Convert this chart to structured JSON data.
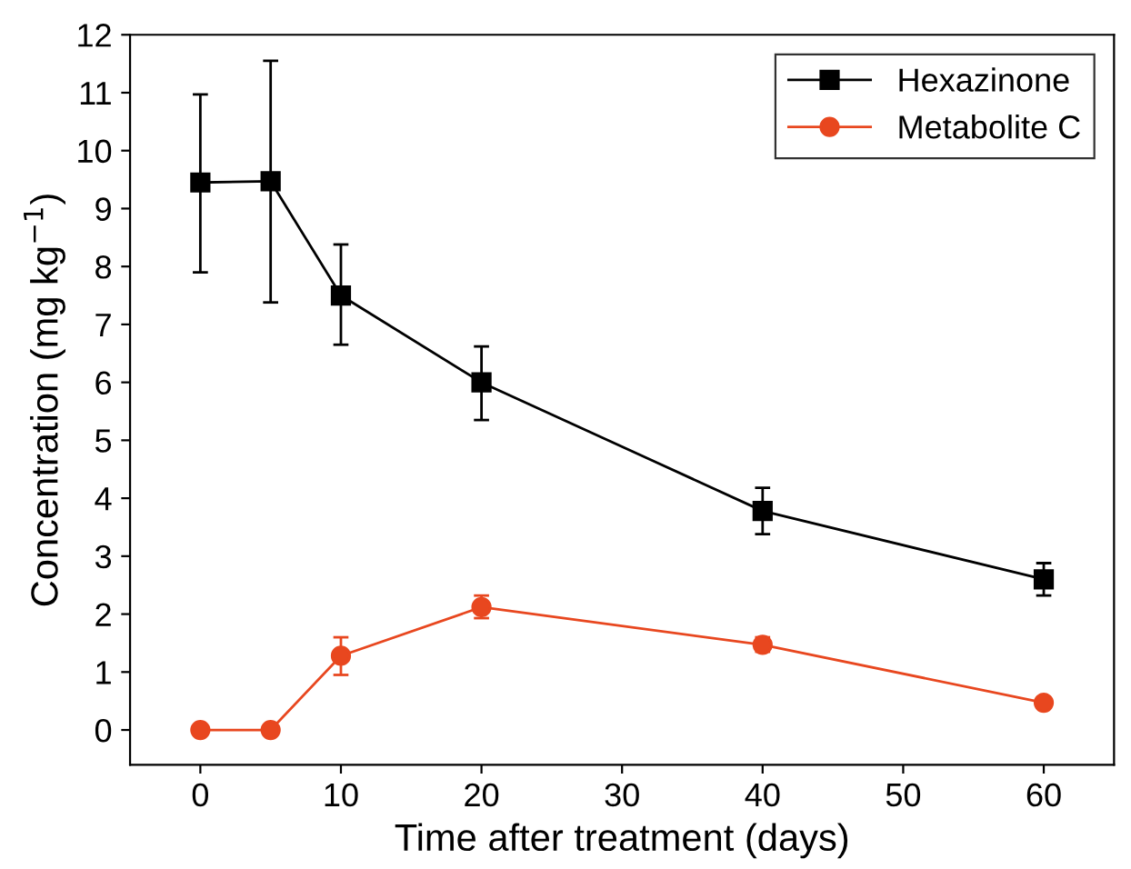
{
  "chart_data": {
    "type": "line",
    "xlabel": "Time after treatment (days)",
    "ylabel": "Concentration (mg kg$^{−1}$)",
    "x": [
      0,
      5,
      10,
      20,
      40,
      60
    ],
    "series": [
      {
        "name": "Hexazinone",
        "color": "#000000",
        "marker": "square",
        "values": [
          9.45,
          9.47,
          7.5,
          6.0,
          3.78,
          2.6
        ],
        "errors": [
          [
            7.9,
            10.97
          ],
          [
            7.38,
            11.55
          ],
          [
            6.65,
            8.38
          ],
          [
            5.35,
            6.62
          ],
          [
            3.38,
            4.18
          ],
          [
            2.32,
            2.88
          ]
        ]
      },
      {
        "name": "Metabolite C",
        "color": "#e8471f",
        "marker": "circle",
        "values": [
          0,
          0,
          1.28,
          2.12,
          1.47,
          0.47
        ],
        "errors": [
          null,
          null,
          [
            0.95,
            1.6
          ],
          [
            1.93,
            2.32
          ],
          [
            1.35,
            1.6
          ],
          [
            0.4,
            0.53
          ]
        ]
      }
    ],
    "xlim": [
      -5,
      65
    ],
    "xticks": [
      0,
      10,
      20,
      30,
      40,
      50,
      60
    ],
    "ylim": [
      -0.6,
      12
    ],
    "yticks": [
      0,
      1,
      2,
      3,
      4,
      5,
      6,
      7,
      8,
      9,
      10,
      11,
      12
    ],
    "legend": "top right",
    "grid": false,
    "line_style": "solid"
  }
}
